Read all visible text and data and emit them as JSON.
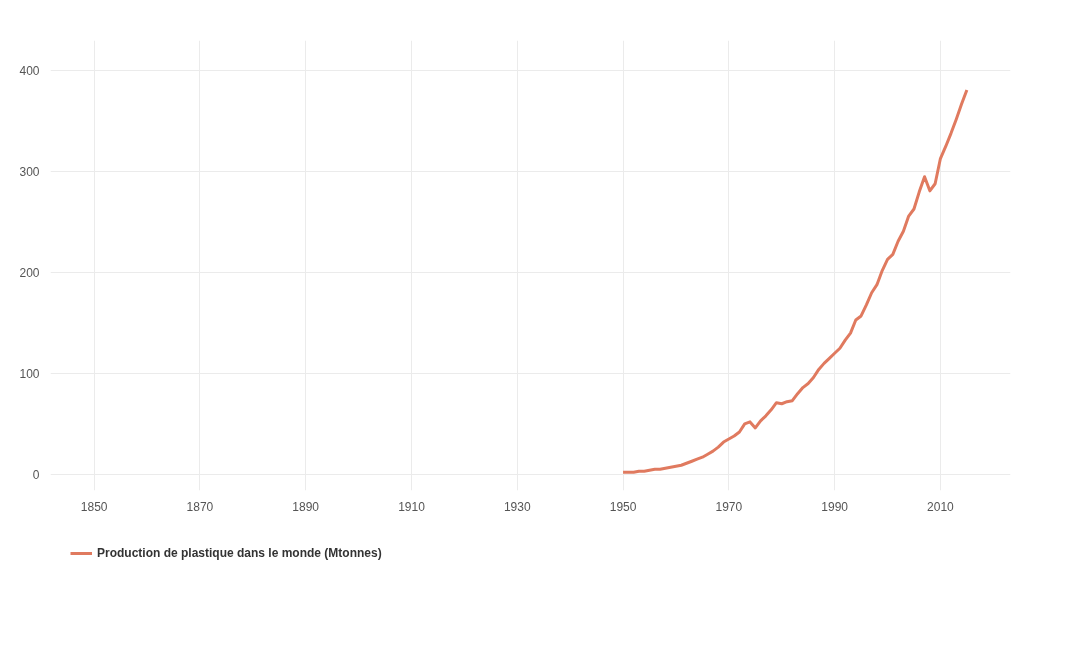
{
  "chart_data": {
    "type": "line",
    "x": [
      1950,
      1951,
      1952,
      1953,
      1954,
      1955,
      1956,
      1957,
      1958,
      1959,
      1960,
      1961,
      1962,
      1963,
      1964,
      1965,
      1966,
      1967,
      1968,
      1969,
      1970,
      1971,
      1972,
      1973,
      1974,
      1975,
      1976,
      1977,
      1978,
      1979,
      1980,
      1981,
      1982,
      1983,
      1984,
      1985,
      1986,
      1987,
      1988,
      1989,
      1990,
      1991,
      1992,
      1993,
      1994,
      1995,
      1996,
      1997,
      1998,
      1999,
      2000,
      2001,
      2002,
      2003,
      2004,
      2005,
      2006,
      2007,
      2008,
      2009,
      2010,
      2011,
      2012,
      2013,
      2014,
      2015
    ],
    "series": [
      {
        "name": "Production de plastique dans le monde (Mtonnes)",
        "color": "#e07a5f",
        "values": [
          2,
          2,
          2,
          3,
          3,
          4,
          5,
          5,
          6,
          7,
          8,
          9,
          11,
          13,
          15,
          17,
          20,
          23,
          27,
          32,
          35,
          38,
          42,
          50,
          52,
          46,
          53,
          58,
          64,
          71,
          70,
          72,
          73,
          80,
          86,
          90,
          96,
          104,
          110,
          115,
          120,
          125,
          133,
          140,
          153,
          157,
          168,
          180,
          188,
          202,
          213,
          218,
          231,
          241,
          256,
          263,
          280,
          295,
          281,
          288,
          313,
          325,
          338,
          352,
          367,
          381
        ]
      }
    ],
    "xlim": [
      1841.75,
      2023.25
    ],
    "xticks": [
      1850,
      1870,
      1890,
      1910,
      1930,
      1950,
      1970,
      1990,
      2010
    ],
    "ylim": [
      -16,
      430
    ],
    "yticks": [
      0,
      100,
      200,
      300,
      400
    ],
    "grid": true,
    "legend": "bottom",
    "line_style": "solid",
    "marker": "none"
  }
}
